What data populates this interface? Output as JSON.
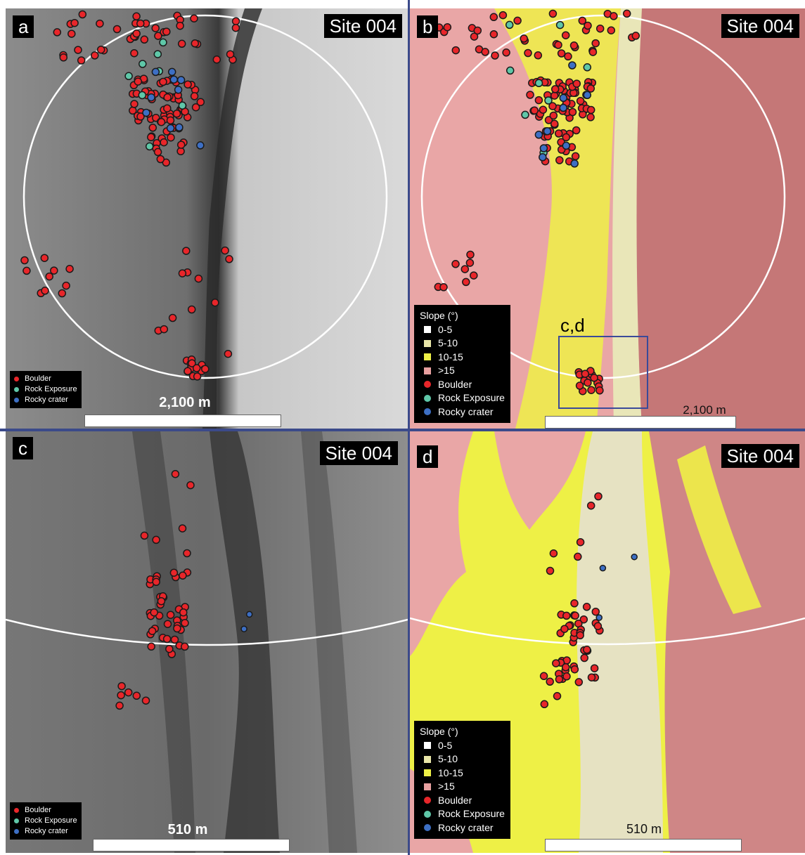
{
  "panels": {
    "a": {
      "letter": "a",
      "site": "Site 004",
      "scale": "2,100 m"
    },
    "b": {
      "letter": "b",
      "site": "Site 004",
      "scale": "2,100 m",
      "inset_label": "c,d"
    },
    "c": {
      "letter": "c",
      "site": "Site 004",
      "scale": "510 m"
    },
    "d": {
      "letter": "d",
      "site": "Site 004",
      "scale": "510 m"
    }
  },
  "legend_points": {
    "boulder": "Boulder",
    "rock_exposure": "Rock Exposure",
    "rocky_crater": "Rocky crater"
  },
  "legend_slope": {
    "title": "Slope (°)",
    "classes": [
      "0-5",
      "5-10",
      "10-15",
      ">15"
    ]
  },
  "colors": {
    "boulder": "#e8262a",
    "rock_exposure": "#5fc7a8",
    "rocky_crater": "#3d6fc4",
    "slope_0_5": "#ffffff",
    "slope_5_10": "#e9e6a8",
    "slope_10_15": "#eef046",
    "slope_gt15": "#e8a0a0"
  }
}
